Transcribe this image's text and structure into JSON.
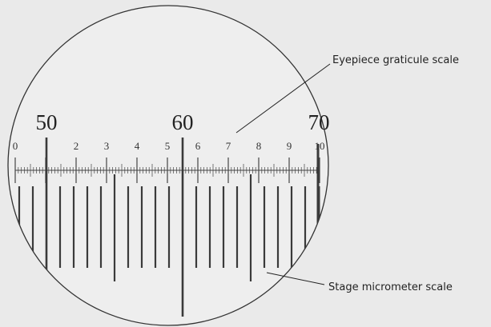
{
  "labels": {
    "eyepiece": "Eyepiece graticule scale",
    "stage": "Stage micrometer scale"
  },
  "stage_numbers": [
    50,
    60,
    70
  ],
  "eyepiece_numbers": [
    0,
    2,
    3,
    4,
    5,
    6,
    7,
    8,
    9,
    10
  ]
}
